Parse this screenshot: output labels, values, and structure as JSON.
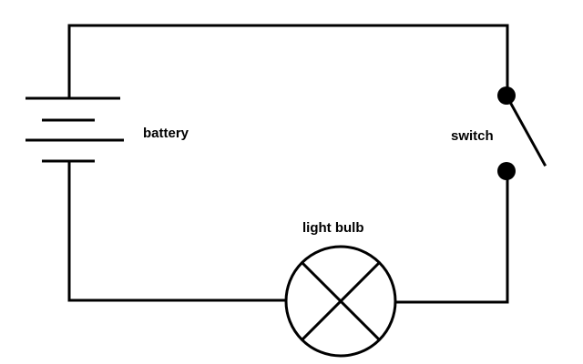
{
  "components": {
    "battery": {
      "label": "battery"
    },
    "switch": {
      "label": "switch"
    },
    "light_bulb": {
      "label": "light bulb"
    }
  },
  "colors": {
    "line": "#000000",
    "background": "#ffffff"
  }
}
